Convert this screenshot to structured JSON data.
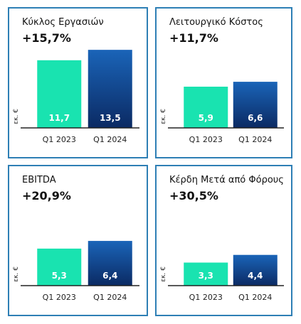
{
  "colors": {
    "border": "#2e7fb5",
    "bar_2023": "#19e3b0",
    "bar_2024_top": "#1a64b8",
    "bar_2024_bottom": "#0b2a63",
    "axis": "#222222"
  },
  "panels": [
    {
      "title": "Κύκλος Εργασιών",
      "change": "+15,7%"
    },
    {
      "title": "Λειτουργικό Κόστος",
      "change": "+11,7%"
    },
    {
      "title": "EBITDA",
      "change": "+20,9%"
    },
    {
      "title": "Κέρδη Μετά από Φόρους",
      "change": "+30,5%"
    }
  ],
  "chart_data": [
    {
      "type": "bar",
      "title": "Κύκλος Εργασιών",
      "ylabel": "εκ. €",
      "categories": [
        "Q1 2023",
        "Q1 2024"
      ],
      "values": [
        11.7,
        13.5
      ],
      "data_labels": [
        "11,7",
        "13,5"
      ],
      "ylim": [
        0,
        14.5
      ]
    },
    {
      "type": "bar",
      "title": "Λειτουργικό Κόστος",
      "ylabel": "εκ. €",
      "categories": [
        "Q1 2023",
        "Q1 2024"
      ],
      "values": [
        5.9,
        6.6
      ],
      "data_labels": [
        "5,9",
        "6,6"
      ],
      "ylim": [
        0,
        12
      ]
    },
    {
      "type": "bar",
      "title": "EBITDA",
      "ylabel": "εκ. €",
      "categories": [
        "Q1 2023",
        "Q1 2024"
      ],
      "values": [
        5.3,
        6.4
      ],
      "data_labels": [
        "5,3",
        "6,4"
      ],
      "ylim": [
        0,
        12
      ]
    },
    {
      "type": "bar",
      "title": "Κέρδη Μετά από Φόρους",
      "ylabel": "εκ. €",
      "categories": [
        "Q1 2023",
        "Q1 2024"
      ],
      "values": [
        3.3,
        4.4
      ],
      "data_labels": [
        "3,3",
        "4,4"
      ],
      "ylim": [
        0,
        12
      ]
    }
  ]
}
